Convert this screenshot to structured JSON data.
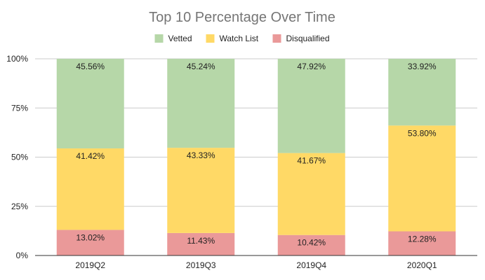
{
  "chart_data": {
    "type": "bar",
    "stacked": true,
    "title": "Top 10 Percentage Over Time",
    "categories": [
      "2019Q2",
      "2019Q3",
      "2019Q4",
      "2020Q1"
    ],
    "series": [
      {
        "name": "Disqualified",
        "color": "#ea9999",
        "values": [
          13.02,
          11.43,
          10.42,
          12.28
        ],
        "labels": [
          "13.02%",
          "11.43%",
          "10.42%",
          "12.28%"
        ]
      },
      {
        "name": "Watch List",
        "color": "#ffd966",
        "values": [
          41.42,
          43.33,
          41.67,
          53.8
        ],
        "labels": [
          "41.42%",
          "43.33%",
          "41.67%",
          "53.80%"
        ]
      },
      {
        "name": "Vetted",
        "color": "#b6d7a8",
        "values": [
          45.56,
          45.24,
          47.92,
          33.92
        ],
        "labels": [
          "45.56%",
          "45.24%",
          "47.92%",
          "33.92%"
        ]
      }
    ],
    "legend_order": [
      "Vetted",
      "Watch List",
      "Disqualified"
    ],
    "ylim": [
      0,
      100
    ],
    "yticks": [
      0,
      25,
      50,
      75,
      100
    ],
    "ytick_labels": [
      "0%",
      "25%",
      "50%",
      "75%",
      "100%"
    ],
    "legend_position": "top-center",
    "grid": true,
    "xlabel": "",
    "ylabel": ""
  }
}
